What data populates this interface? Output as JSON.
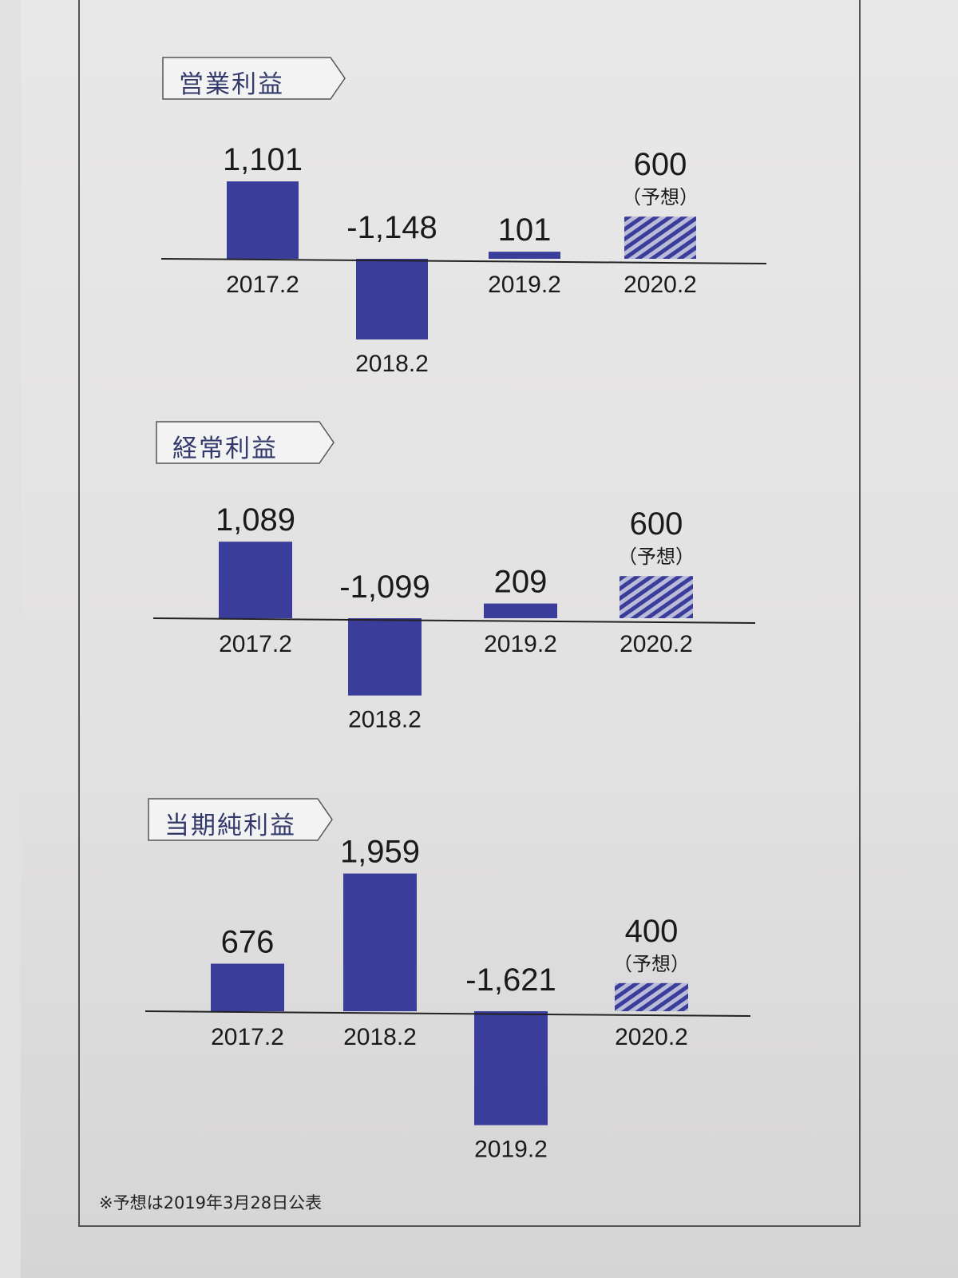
{
  "footnote": "※予想は2019年3月28日公表",
  "colors": {
    "bar": "#3a3d9a",
    "forecast_stripe": "#3a3d9a",
    "forecast_bg": "#b9bbd9",
    "title_border": "#555555",
    "title_text": "#333a6b"
  },
  "chart_data": [
    {
      "type": "bar",
      "title": "営業利益",
      "categories": [
        "2017.2",
        "2018.2",
        "2019.2",
        "2020.2"
      ],
      "values": [
        1101,
        -1148,
        101,
        600
      ],
      "value_labels": [
        "1,101",
        "-1,148",
        "101",
        "600"
      ],
      "forecast": [
        false,
        false,
        false,
        true
      ],
      "forecast_label": "（予想）"
    },
    {
      "type": "bar",
      "title": "経常利益",
      "categories": [
        "2017.2",
        "2018.2",
        "2019.2",
        "2020.2"
      ],
      "values": [
        1089,
        -1099,
        209,
        600
      ],
      "value_labels": [
        "1,089",
        "-1,099",
        "209",
        "600"
      ],
      "forecast": [
        false,
        false,
        false,
        true
      ],
      "forecast_label": "（予想）"
    },
    {
      "type": "bar",
      "title": "当期純利益",
      "categories": [
        "2017.2",
        "2018.2",
        "2019.2",
        "2020.2"
      ],
      "values": [
        676,
        1959,
        -1621,
        400
      ],
      "value_labels": [
        "676",
        "1,959",
        "-1,621",
        "400"
      ],
      "forecast": [
        false,
        false,
        false,
        true
      ],
      "forecast_label": "（予想）"
    }
  ]
}
